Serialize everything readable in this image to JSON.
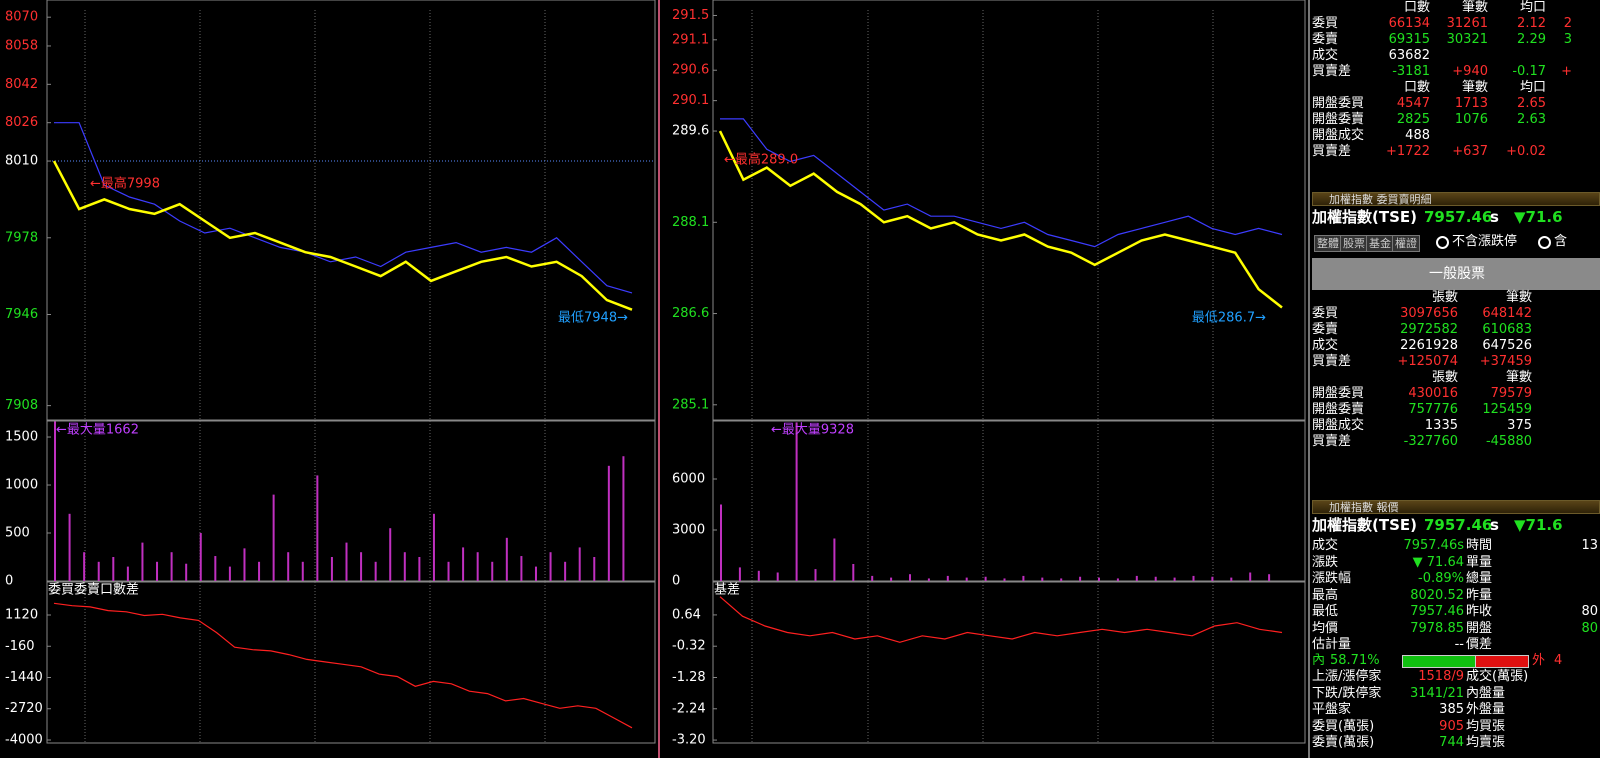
{
  "chart_data": [
    {
      "type": "line",
      "reference": 8010,
      "reference_line": true,
      "ylim": [
        7902,
        8073
      ],
      "yticks": [
        8070,
        8058,
        8042,
        8026,
        8010,
        7978,
        7946,
        7908
      ],
      "annotations": [
        "←最高7998",
        "最低7948→"
      ],
      "series": [
        {
          "color": "#3c3cff",
          "values": [
            8026,
            8026,
            8000,
            7995,
            7992,
            7985,
            7980,
            7982,
            7978,
            7974,
            7972,
            7968,
            7970,
            7966,
            7972,
            7974,
            7976,
            7972,
            7974,
            7972,
            7978,
            7968,
            7958,
            7955
          ]
        },
        {
          "color": "#ffff00",
          "values": [
            8010,
            7990,
            7994,
            7990,
            7988,
            7992,
            7985,
            7978,
            7980,
            7976,
            7972,
            7970,
            7966,
            7962,
            7968,
            7960,
            7964,
            7968,
            7970,
            7966,
            7968,
            7962,
            7952,
            7948
          ]
        }
      ]
    },
    {
      "type": "bar",
      "ylim": [
        0,
        1667
      ],
      "yticks": [
        0,
        500,
        1000,
        1500
      ],
      "annotations": [
        "←最大量1662"
      ],
      "color": "#c030c0",
      "values": [
        1662,
        700,
        300,
        200,
        250,
        150,
        400,
        200,
        300,
        180,
        500,
        260,
        150,
        340,
        200,
        900,
        300,
        200,
        1100,
        250,
        400,
        300,
        200,
        550,
        300,
        250,
        700,
        200,
        350,
        300,
        200,
        450,
        260,
        150,
        300,
        200,
        350,
        250,
        1200,
        1300
      ]
    },
    {
      "type": "line",
      "title": "委買委賣口數差",
      "ylim": [
        -4123,
        2472
      ],
      "yticks": [
        1120,
        -160,
        -1440,
        -2720,
        -4000
      ],
      "series": [
        {
          "color": "#ff2020",
          "values": [
            1600,
            1500,
            1450,
            1300,
            1250,
            1100,
            1150,
            1000,
            900,
            400,
            -200,
            -300,
            -350,
            -500,
            -700,
            -800,
            -900,
            -1000,
            -1300,
            -1400,
            -1800,
            -1600,
            -1700,
            -2000,
            -2100,
            -2400,
            -2300,
            -2500,
            -2700,
            -2600,
            -2700,
            -3100,
            -3500
          ]
        }
      ]
    },
    {
      "type": "line",
      "reference": 289.6,
      "ylim": [
        284.85,
        291.59
      ],
      "yticks": [
        291.5,
        291.1,
        290.6,
        290.1,
        289.6,
        288.1,
        286.6,
        285.1
      ],
      "annotations": [
        "←最高289.0",
        "最低286.7→"
      ],
      "series": [
        {
          "color": "#3c3cff",
          "values": [
            289.8,
            289.8,
            289.3,
            289.1,
            289.2,
            288.9,
            288.6,
            288.3,
            288.4,
            288.2,
            288.2,
            288.1,
            288,
            288.1,
            287.9,
            287.8,
            287.7,
            287.9,
            288,
            288.1,
            288.2,
            288,
            287.9,
            288,
            287.9
          ]
        },
        {
          "color": "#ffff00",
          "values": [
            289.6,
            288.8,
            289,
            288.7,
            288.9,
            288.6,
            288.4,
            288.1,
            288.2,
            288,
            288.1,
            287.9,
            287.8,
            287.9,
            287.7,
            287.6,
            287.4,
            287.6,
            287.8,
            287.9,
            287.8,
            287.7,
            287.6,
            287,
            286.7
          ]
        }
      ]
    },
    {
      "type": "bar",
      "ylim": [
        0,
        9412
      ],
      "yticks": [
        0,
        3000,
        6000
      ],
      "annotations": [
        "←最大量9328"
      ],
      "color": "#c030c0",
      "values": [
        4500,
        800,
        600,
        500,
        9328,
        700,
        2500,
        1000,
        300,
        200,
        400,
        150,
        300,
        200,
        250,
        150,
        300,
        200,
        150,
        250,
        200,
        150,
        300,
        250,
        200,
        300,
        250,
        200,
        500,
        400
      ]
    },
    {
      "type": "line",
      "title": "基差",
      "ylim": [
        -3.29,
        1.65
      ],
      "yticks": [
        0.64,
        -0.32,
        -1.28,
        -2.24,
        {
          "value": -3.2,
          "label": "-3.20"
        }
      ],
      "series": [
        {
          "color": "#ff2020",
          "values": [
            1.2,
            0.6,
            0.3,
            0.1,
            0,
            0.1,
            -0.1,
            0,
            -0.2,
            0,
            -0.1,
            0.1,
            0,
            -0.1,
            0.1,
            0,
            0.1,
            0.2,
            0.1,
            0.2,
            0.1,
            0,
            0.3,
            0.4,
            0.2,
            0.1
          ]
        }
      ]
    }
  ],
  "futures_table": {
    "blocks": [
      {
        "header": [
          "口數",
          "筆數",
          "均口"
        ],
        "rows": [
          {
            "label": "委買",
            "color": "#ff3030",
            "cells": [
              "66134",
              "31261",
              "2.12",
              "2"
            ]
          },
          {
            "label": "委賣",
            "color": "#20e020",
            "cells": [
              "69315",
              "30321",
              "2.29",
              "3"
            ]
          },
          {
            "label": "成交",
            "color": "#ffffff",
            "cells": [
              "63682"
            ]
          },
          {
            "label": "買賣差",
            "color": "sign",
            "cells": [
              "-3181",
              "+940",
              "-0.17",
              "+"
            ]
          }
        ]
      },
      {
        "header": [
          "口數",
          "筆數",
          "均口"
        ],
        "rows": [
          {
            "label": "開盤委買",
            "color": "#ff3030",
            "cells": [
              "4547",
              "1713",
              "2.65"
            ]
          },
          {
            "label": "開盤委賣",
            "color": "#20e020",
            "cells": [
              "2825",
              "1076",
              "2.63"
            ]
          },
          {
            "label": "開盤成交",
            "color": "#ffffff",
            "cells": [
              "488"
            ]
          },
          {
            "label": "買賣差",
            "color": "sign",
            "cells": [
              "+1722",
              "+637",
              "+0.02"
            ]
          }
        ]
      }
    ]
  },
  "detail_panel": {
    "header": "加權指數 委買賣明細",
    "name": "加權指數(TSE)",
    "price": "7957.46",
    "flag": "s",
    "change": "▼71.6",
    "buttons": [
      "整體",
      "股票",
      "基金",
      "權證"
    ],
    "radio_1": "不含漲跌停",
    "radio_2": "含",
    "category": "一般股票",
    "blocks": [
      {
        "header": [
          "張數",
          "筆數"
        ],
        "rows": [
          {
            "label": "委買",
            "color": "#ff3030",
            "cells": [
              "3097656",
              "648142"
            ]
          },
          {
            "label": "委賣",
            "color": "#20e020",
            "cells": [
              "2972582",
              "610683"
            ]
          },
          {
            "label": "成交",
            "color": "#ffffff",
            "cells": [
              "2261928",
              "647526"
            ]
          },
          {
            "label": "買賣差",
            "color": "sign",
            "cells": [
              "+125074",
              "+37459"
            ]
          }
        ]
      },
      {
        "header": [
          "張數",
          "筆數"
        ],
        "rows": [
          {
            "label": "開盤委買",
            "color": "#ff3030",
            "cells": [
              "430016",
              "79579"
            ]
          },
          {
            "label": "開盤委賣",
            "color": "#20e020",
            "cells": [
              "757776",
              "125459"
            ]
          },
          {
            "label": "開盤成交",
            "color": "#ffffff",
            "cells": [
              "1335",
              "375"
            ]
          },
          {
            "label": "買賣差",
            "color": "sign",
            "cells": [
              "-327760",
              "-45880"
            ]
          }
        ]
      }
    ]
  },
  "quote_panel": {
    "header": "加權指數 報價",
    "name": "加權指數(TSE)",
    "price": "7957.46",
    "flag": "s",
    "change": "▼71.6",
    "rows": [
      {
        "label": "成交",
        "value": "7957.46s",
        "color": "#20e020",
        "label2": "時間",
        "value2": "13",
        "color2": "#ffffff"
      },
      {
        "label": "漲跌",
        "value": "▼ 71.64",
        "color": "#20e020",
        "label2": "單量"
      },
      {
        "label": "漲跌幅",
        "value": "-0.89%",
        "color": "#20e020",
        "label2": "總量"
      },
      {
        "label": "最高",
        "value": "8020.52",
        "color": "#20e020",
        "label2": "昨量"
      },
      {
        "label": "最低",
        "value": "7957.46",
        "color": "#20e020",
        "label2": "昨收",
        "value2": "80",
        "color2": "#ffffff"
      },
      {
        "label": "均價",
        "value": "7978.85",
        "color": "#20e020",
        "label2": "開盤",
        "value2": "80",
        "color2": "#20e020"
      },
      {
        "label": "估計量",
        "value": "--",
        "color": "#ffffff",
        "label2": "價差"
      }
    ],
    "ratio": {
      "inner_label": "內",
      "inner": "58.71%",
      "outer_label": "外",
      "outer": "4"
    },
    "rows2": [
      {
        "label": "上漲/漲停家",
        "value": "1518/9",
        "color": "#ff3030",
        "label2": "成交(萬張)"
      },
      {
        "label": "下跌/跌停家",
        "value": "3141/21",
        "color": "#20e020",
        "label2": "內盤量"
      },
      {
        "label": "平盤家",
        "value": "385",
        "color": "#ffffff",
        "label2": "外盤量"
      },
      {
        "label": "委買(萬張)",
        "value": "905",
        "color": "#ff3030",
        "label2": "均買張"
      },
      {
        "label": "委賣(萬張)",
        "value": "744",
        "color": "#20e020",
        "label2": "均賣張"
      }
    ]
  }
}
